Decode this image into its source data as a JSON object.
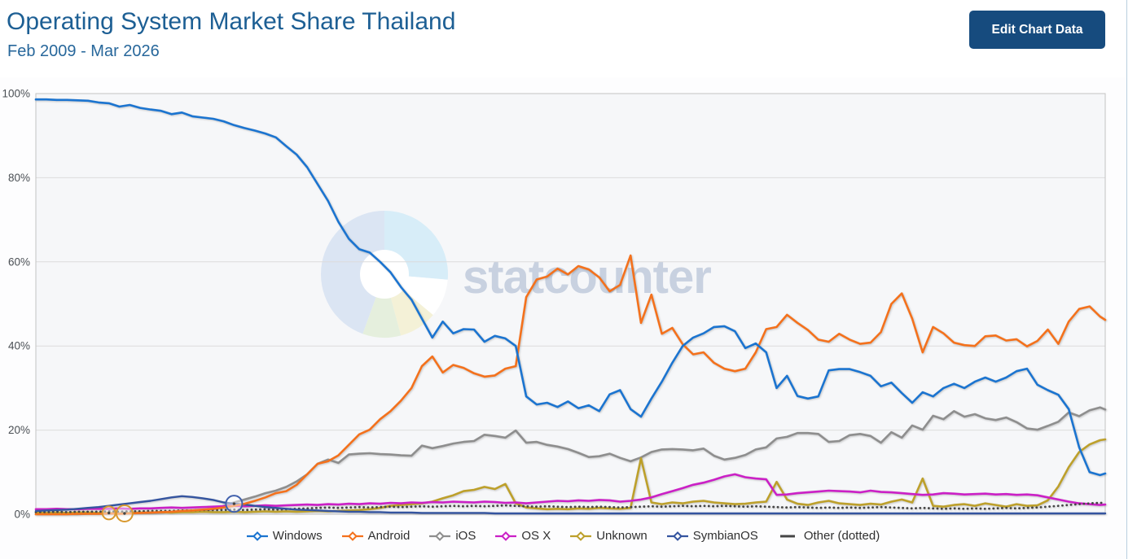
{
  "header": {
    "title": "Operating System Market Share Thailand",
    "subtitle": "Feb 2009 - Mar 2026",
    "edit_button": "Edit Chart Data"
  },
  "watermark": {
    "text": "statcounter"
  },
  "chart_data": {
    "type": "line",
    "title": "Operating System Market Share Thailand",
    "x_start": "2009-02",
    "x_end": "2026-03",
    "x_unit": "month",
    "sample_step_months": 2,
    "total_month_intervals": 205,
    "ylim": [
      0,
      100
    ],
    "y_tick_values": [
      0,
      20,
      40,
      60,
      80,
      100
    ],
    "y_tick_labels": [
      "0%",
      "20%",
      "40%",
      "60%",
      "80%",
      "100%"
    ],
    "grid": true,
    "legend_position": "bottom",
    "colors": {
      "plot_bg": "#f6f7f9",
      "grid_line": "#dcdcdc",
      "plot_border": "#c3c3c3",
      "axis_label": "#4a4f54",
      "watermark": "#c8d1e0",
      "title_text": "#1d5f94",
      "button_bg": "#164b7e"
    },
    "series": [
      {
        "name": "Windows",
        "legend_label": "Windows",
        "color": "#1b74d0",
        "style": "solid",
        "values": [
          98.6,
          98.6,
          98.5,
          98.5,
          98.4,
          98.3,
          97.9,
          97.7,
          96.9,
          97.3,
          96.6,
          96.2,
          95.9,
          95.1,
          95.5,
          94.6,
          94.3,
          94.0,
          93.4,
          92.5,
          91.8,
          91.2,
          90.5,
          89.6,
          87.5,
          85.5,
          82.5,
          78.5,
          74.5,
          69.5,
          65.5,
          63.0,
          62.2,
          60.0,
          57.5,
          54.0,
          51.0,
          46.5,
          42.0,
          45.8,
          43.0,
          44.0,
          43.9,
          41.0,
          42.4,
          41.8,
          40.0,
          28.0,
          26.1,
          26.5,
          25.5,
          26.8,
          25.2,
          25.9,
          24.5,
          28.5,
          29.5,
          25.0,
          23.2,
          27.5,
          31.5,
          36.0,
          40.0,
          42.0,
          43.0,
          44.5,
          44.7,
          43.5,
          39.5,
          40.6,
          38.5,
          30.0,
          32.9,
          28.1,
          27.5,
          28.0,
          34.2,
          34.5,
          34.5,
          33.8,
          32.9,
          30.4,
          31.3,
          28.8,
          26.5,
          29.0,
          28.0,
          30.0,
          31.0,
          30.0,
          31.5,
          32.5,
          31.5,
          32.5,
          34.0,
          34.6,
          30.8,
          29.5,
          28.4,
          25.0,
          15.9,
          10.0,
          9.3,
          9.7
        ]
      },
      {
        "name": "Android",
        "legend_label": "Android",
        "color": "#f4711c",
        "style": "solid",
        "values": [
          0.0,
          0.0,
          0.0,
          0.0,
          0.1,
          0.1,
          0.1,
          0.2,
          0.1,
          0.2,
          0.3,
          0.4,
          0.5,
          0.6,
          0.8,
          0.9,
          1.1,
          1.3,
          1.6,
          2.0,
          2.5,
          3.2,
          4.0,
          5.0,
          5.5,
          7.0,
          9.5,
          12.0,
          12.6,
          14.0,
          16.5,
          19.0,
          20.1,
          22.6,
          24.5,
          27.0,
          30.0,
          35.2,
          37.5,
          33.7,
          35.5,
          34.8,
          33.5,
          32.7,
          33.0,
          34.6,
          35.2,
          51.6,
          55.8,
          56.5,
          58.4,
          57.0,
          59.0,
          58.2,
          56.3,
          53.0,
          54.5,
          61.5,
          45.5,
          52.2,
          42.9,
          44.3,
          40.4,
          38.0,
          38.5,
          36.0,
          34.6,
          34.0,
          34.6,
          38.5,
          44.0,
          44.5,
          47.4,
          45.5,
          43.8,
          41.5,
          41.0,
          42.9,
          41.5,
          40.5,
          40.8,
          43.3,
          50.0,
          52.5,
          46.5,
          38.5,
          44.5,
          43.0,
          40.8,
          40.2,
          40.0,
          42.3,
          42.5,
          41.3,
          41.6,
          39.9,
          41.2,
          43.9,
          40.5,
          45.8,
          48.8,
          49.4,
          47.0,
          46.2
        ]
      },
      {
        "name": "iOS",
        "legend_label": "iOS",
        "color": "#8e8e8e",
        "style": "solid",
        "values": [
          0.0,
          0.0,
          0.0,
          0.0,
          0.0,
          0.1,
          0.1,
          0.1,
          0.2,
          0.2,
          0.3,
          0.3,
          0.4,
          0.5,
          0.6,
          0.7,
          0.9,
          1.2,
          2.0,
          2.8,
          3.5,
          4.2,
          5.0,
          5.6,
          6.5,
          7.8,
          9.5,
          12.0,
          13.0,
          12.2,
          14.2,
          14.4,
          14.5,
          14.3,
          14.2,
          14.0,
          13.9,
          16.3,
          15.7,
          16.2,
          16.8,
          17.2,
          17.4,
          18.9,
          18.6,
          18.2,
          19.9,
          17.0,
          17.2,
          16.5,
          16.1,
          15.5,
          14.6,
          13.6,
          13.8,
          14.4,
          13.4,
          12.6,
          13.5,
          14.8,
          15.4,
          15.5,
          15.4,
          15.2,
          15.6,
          13.9,
          13.0,
          13.4,
          14.1,
          15.4,
          15.9,
          18.0,
          18.4,
          19.3,
          19.3,
          19.1,
          17.2,
          17.4,
          18.8,
          19.1,
          18.6,
          17.0,
          19.5,
          18.2,
          21.1,
          20.1,
          23.4,
          22.6,
          24.5,
          23.2,
          23.8,
          22.8,
          22.4,
          23.0,
          21.9,
          20.4,
          20.1,
          21.0,
          22.0,
          24.2,
          23.3,
          24.7,
          25.4,
          24.9
        ]
      },
      {
        "name": "OS X",
        "legend_label": "OS X",
        "color": "#cb20c6",
        "style": "solid",
        "values": [
          1.2,
          1.2,
          1.3,
          1.2,
          1.2,
          1.3,
          1.3,
          1.3,
          1.4,
          1.3,
          1.4,
          1.4,
          1.5,
          1.6,
          1.5,
          1.6,
          1.7,
          1.8,
          1.9,
          2.0,
          1.9,
          2.0,
          2.1,
          2.0,
          2.1,
          2.2,
          2.3,
          2.2,
          2.4,
          2.3,
          2.5,
          2.4,
          2.6,
          2.5,
          2.7,
          2.6,
          2.8,
          2.7,
          2.9,
          2.8,
          3.0,
          2.9,
          2.8,
          3.0,
          2.9,
          2.7,
          2.8,
          2.6,
          2.8,
          3.0,
          3.2,
          3.1,
          3.3,
          3.2,
          3.4,
          3.3,
          3.0,
          3.2,
          3.5,
          4.0,
          4.8,
          5.5,
          6.2,
          7.0,
          7.5,
          8.2,
          9.0,
          9.5,
          8.8,
          8.5,
          8.3,
          4.6,
          4.7,
          5.0,
          5.2,
          5.4,
          5.6,
          5.5,
          5.4,
          5.2,
          5.6,
          5.3,
          5.2,
          5.0,
          4.8,
          4.6,
          4.7,
          5.0,
          4.9,
          4.7,
          4.8,
          4.9,
          4.7,
          4.8,
          4.6,
          4.7,
          4.5,
          4.0,
          3.5,
          3.0,
          2.6,
          2.4,
          2.2,
          2.3
        ]
      },
      {
        "name": "Unknown",
        "legend_label": "Unknown",
        "color": "#bda02b",
        "style": "solid",
        "values": [
          0.4,
          0.3,
          0.4,
          0.3,
          0.4,
          0.4,
          0.3,
          0.3,
          0.2,
          0.3,
          0.4,
          0.4,
          0.5,
          0.4,
          0.5,
          0.5,
          0.6,
          0.5,
          0.5,
          0.6,
          0.5,
          0.6,
          0.7,
          0.6,
          0.7,
          0.6,
          0.7,
          0.8,
          0.7,
          0.8,
          0.9,
          1.0,
          1.2,
          1.5,
          2.0,
          2.2,
          2.4,
          2.6,
          3.0,
          3.8,
          4.5,
          5.5,
          5.8,
          6.5,
          6.0,
          7.2,
          2.6,
          1.6,
          1.4,
          1.2,
          1.3,
          1.2,
          1.4,
          1.3,
          1.5,
          1.4,
          1.3,
          1.5,
          13.3,
          2.8,
          2.4,
          2.8,
          2.6,
          3.0,
          3.2,
          2.8,
          2.6,
          2.4,
          2.5,
          2.8,
          3.0,
          7.7,
          3.5,
          2.5,
          2.2,
          2.8,
          3.2,
          2.6,
          2.4,
          2.2,
          2.5,
          2.3,
          3.0,
          3.5,
          2.8,
          8.5,
          2.0,
          1.8,
          2.2,
          2.4,
          2.0,
          2.6,
          2.2,
          1.8,
          2.4,
          2.0,
          2.1,
          3.3,
          6.6,
          11.2,
          14.8,
          16.6,
          17.6,
          17.8
        ]
      },
      {
        "name": "SymbianOS",
        "legend_label": "SymbianOS",
        "color": "#34549f",
        "style": "solid",
        "values": [
          0.8,
          0.9,
          1.0,
          1.1,
          1.3,
          1.5,
          1.7,
          2.0,
          2.3,
          2.6,
          2.9,
          3.2,
          3.6,
          4.0,
          4.3,
          4.1,
          3.8,
          3.4,
          2.8,
          2.5,
          2.3,
          2.0,
          1.7,
          1.5,
          1.3,
          1.1,
          1.0,
          0.9,
          0.8,
          0.7,
          0.6,
          0.6,
          0.5,
          0.5,
          0.4,
          0.4,
          0.4,
          0.3,
          0.3,
          0.3,
          0.3,
          0.3,
          0.3,
          0.3,
          0.2,
          0.2,
          0.2,
          0.2,
          0.2,
          0.2,
          0.2,
          0.2,
          0.2,
          0.2,
          0.2,
          0.2,
          0.2,
          0.2,
          0.2,
          0.2,
          0.2,
          0.2,
          0.2,
          0.2,
          0.2,
          0.2,
          0.2,
          0.2,
          0.2,
          0.2,
          0.2,
          0.2,
          0.2,
          0.2,
          0.2,
          0.2,
          0.2,
          0.2,
          0.2,
          0.2,
          0.2,
          0.2,
          0.2,
          0.2,
          0.2,
          0.2,
          0.2,
          0.2,
          0.2,
          0.2,
          0.2,
          0.2,
          0.2,
          0.2,
          0.2,
          0.2,
          0.2,
          0.2,
          0.2,
          0.2,
          0.2,
          0.2,
          0.2,
          0.2
        ]
      },
      {
        "name": "Other",
        "legend_label": "Other (dotted)",
        "color": "#454545",
        "style": "dotted",
        "values": [
          0.5,
          0.5,
          0.6,
          0.5,
          0.6,
          0.6,
          0.6,
          0.7,
          0.6,
          0.7,
          0.7,
          0.8,
          0.8,
          0.8,
          0.9,
          0.9,
          1.0,
          1.0,
          1.0,
          1.1,
          1.0,
          1.1,
          1.2,
          1.1,
          1.2,
          1.3,
          1.4,
          1.5,
          1.6,
          1.5,
          1.6,
          1.7,
          1.6,
          1.7,
          1.8,
          1.7,
          1.8,
          1.9,
          1.8,
          1.9,
          2.0,
          1.9,
          2.0,
          1.9,
          2.0,
          2.1,
          2.0,
          1.9,
          1.8,
          1.9,
          1.8,
          1.7,
          1.8,
          1.7,
          1.8,
          1.7,
          1.6,
          1.7,
          1.8,
          1.9,
          1.8,
          1.9,
          2.0,
          1.9,
          2.0,
          1.9,
          2.0,
          1.9,
          1.8,
          1.9,
          1.8,
          1.7,
          1.6,
          1.7,
          1.6,
          1.5,
          1.6,
          1.5,
          1.6,
          1.5,
          1.6,
          1.7,
          1.6,
          1.5,
          1.4,
          1.5,
          1.4,
          1.3,
          1.4,
          1.3,
          1.4,
          1.3,
          1.4,
          1.5,
          1.4,
          1.5,
          1.6,
          1.8,
          2.0,
          2.2,
          2.4,
          2.6,
          2.7,
          2.7
        ]
      }
    ],
    "highlight_markers": [
      {
        "series": "Unknown",
        "month": "2010-04",
        "month_index": 14,
        "value": 0.3,
        "color": "#d8982e",
        "radius": 8
      },
      {
        "series": "Unknown",
        "month": "2010-07",
        "month_index": 17,
        "value": 0.2,
        "color": "#d8982e",
        "radius": 10
      },
      {
        "series": "SymbianOS",
        "month": "2012-04",
        "month_index": 38,
        "value": 2.5,
        "color": "#4060ac",
        "radius": 10
      }
    ]
  }
}
